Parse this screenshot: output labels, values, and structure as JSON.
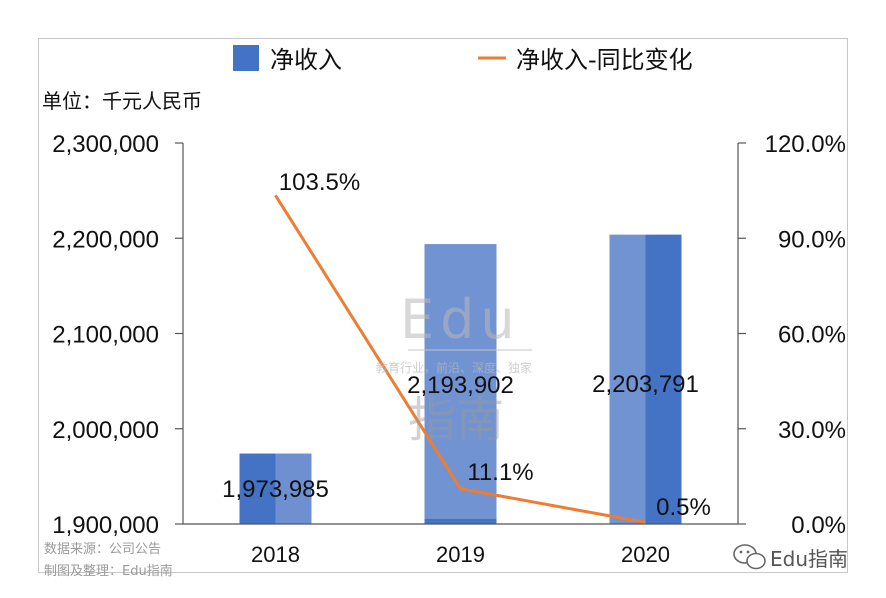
{
  "chart_data": {
    "type": "bar",
    "categories": [
      "2018",
      "2019",
      "2020"
    ],
    "series": [
      {
        "name": "净收入",
        "kind": "bar",
        "axis": "left",
        "color": "#4472C4",
        "values": [
          1973985,
          2193902,
          2203791
        ]
      },
      {
        "name": "净收入-同比变化",
        "kind": "line",
        "axis": "right",
        "color": "#ED7D31",
        "values": [
          103.5,
          11.1,
          0.5
        ]
      }
    ],
    "bar_labels": [
      "1,973,985",
      "2,193,902",
      "2,203,791"
    ],
    "line_labels": [
      "103.5%",
      "11.1%",
      "0.5%"
    ],
    "y_left": {
      "min": 1900000,
      "max": 2300000,
      "ticks": [
        "1,900,000",
        "2,000,000",
        "2,100,000",
        "2,200,000",
        "2,300,000"
      ],
      "tick_values": [
        1900000,
        2000000,
        2100000,
        2200000,
        2300000
      ]
    },
    "y_right": {
      "min": 0,
      "max": 120,
      "ticks": [
        "0.0%",
        "30.0%",
        "60.0%",
        "90.0%",
        "120.0%"
      ],
      "tick_values": [
        0,
        30,
        60,
        90,
        120
      ]
    },
    "unit_label": "单位：千元人民币",
    "legend_position": "top",
    "grid": false
  },
  "footer": {
    "source": "数据来源：公司公告",
    "compiled_by": "制图及整理：Edu指南",
    "brand": "Edu指南"
  },
  "watermark": {
    "title": "Edu",
    "tagline": "教育行业，前沿、深度、独家",
    "chinese": "指南"
  }
}
